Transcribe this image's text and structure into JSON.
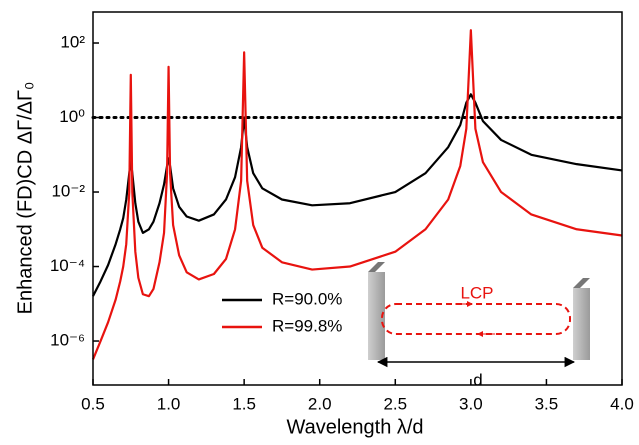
{
  "chart_data": {
    "type": "line",
    "x_label": "Wavelength λ/d",
    "y_label": "Enhanced (FD)CD ΔΓ/ΔΓ₀",
    "log_y": true,
    "xlim": [
      0.5,
      4.0
    ],
    "ylim": [
      6.6e-08,
      680
    ],
    "xticks": [
      0.5,
      {
        "value": 1,
        "label": "1.0"
      },
      1.5,
      {
        "value": 2,
        "label": "2.0"
      },
      2.5,
      {
        "value": 3,
        "label": "3.0"
      },
      3.5,
      {
        "value": 4,
        "label": "4.0"
      }
    ],
    "yticks": [
      {
        "value": 1e-06,
        "label": "10⁻⁶"
      },
      {
        "value": 0.0001,
        "label": "10⁻⁴"
      },
      {
        "value": 0.01,
        "label": "10⁻²"
      },
      {
        "value": 1,
        "label": "10⁰"
      },
      {
        "value": 100,
        "label": "10²"
      }
    ],
    "reference_line": 1,
    "legend_position": "lower center",
    "annotations": [
      "LCP",
      "d"
    ],
    "x": [
      0.5,
      0.55,
      0.6,
      0.65,
      0.68,
      0.7,
      0.72,
      0.74,
      0.75,
      0.76,
      0.78,
      0.8,
      0.83,
      0.87,
      0.9,
      0.94,
      0.97,
      0.99,
      1.0,
      1.01,
      1.03,
      1.07,
      1.12,
      1.2,
      1.3,
      1.38,
      1.44,
      1.48,
      1.5,
      1.52,
      1.56,
      1.62,
      1.75,
      1.95,
      2.2,
      2.5,
      2.7,
      2.85,
      2.93,
      2.97,
      3.0,
      3.03,
      3.08,
      3.2,
      3.4,
      3.7,
      4.0
    ],
    "series": [
      {
        "name": "R=90.0%",
        "color": "#000000",
        "values": [
          1.6e-05,
          4e-05,
          0.00011,
          0.0004,
          0.001,
          0.002,
          0.0063,
          0.032,
          0.074,
          0.032,
          0.005,
          0.0016,
          0.0008,
          0.001,
          0.0016,
          0.005,
          0.016,
          0.05,
          0.08,
          0.05,
          0.0126,
          0.004,
          0.0022,
          0.0017,
          0.0025,
          0.0063,
          0.025,
          0.16,
          1,
          0.16,
          0.032,
          0.0126,
          0.0063,
          0.0044,
          0.005,
          0.01,
          0.032,
          0.16,
          0.63,
          2.5,
          4.2,
          2.5,
          0.8,
          0.25,
          0.1,
          0.056,
          0.038
        ]
      },
      {
        "name": "R=99.8%",
        "color": "#e8130f",
        "values": [
          3.2e-07,
          1e-06,
          3.2e-06,
          1.3e-05,
          4e-05,
          0.0001,
          0.0004,
          0.01,
          14,
          0.01,
          0.00025,
          5e-05,
          1.8e-05,
          1.6e-05,
          2.5e-05,
          0.00013,
          0.0008,
          0.032,
          23,
          0.032,
          0.0013,
          0.0002,
          7e-05,
          4.5e-05,
          6.3e-05,
          0.00016,
          0.001,
          0.02,
          56,
          0.02,
          0.0013,
          0.00032,
          0.00013,
          8.3e-05,
          0.0001,
          0.00025,
          0.001,
          0.0063,
          0.05,
          0.5,
          220,
          0.5,
          0.063,
          0.01,
          0.0025,
          0.001,
          0.00068
        ]
      }
    ]
  }
}
